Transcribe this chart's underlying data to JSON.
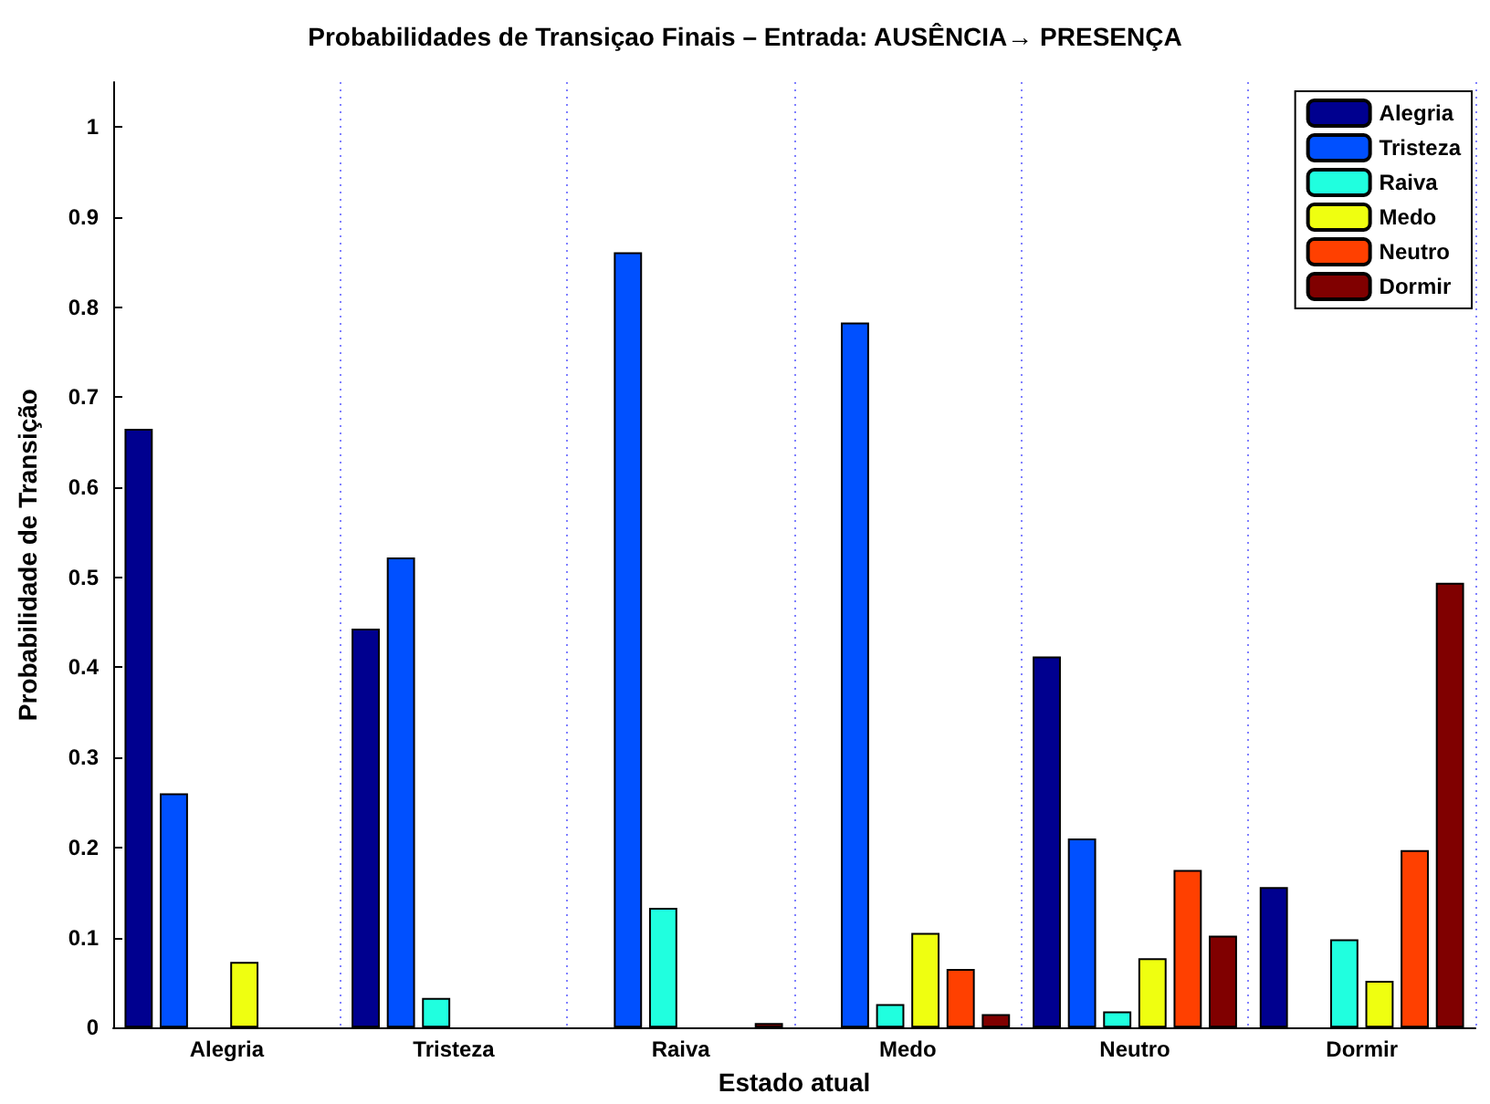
{
  "chart_data": {
    "type": "bar",
    "title": "Probabilidades de Transiçao Finais – Entrada: AUSÊNCIA→ PRESENÇA",
    "xlabel": "Estado atual",
    "ylabel": "Probabilidade de Transição",
    "categories": [
      "Alegria",
      "Tristeza",
      "Raiva",
      "Medo",
      "Neutro",
      "Dormir"
    ],
    "series": [
      {
        "name": "Alegria",
        "color": "#00008f",
        "values": [
          0.665,
          0.443,
          0,
          0,
          0.412,
          0.156
        ]
      },
      {
        "name": "Tristeza",
        "color": "#0050ff",
        "values": [
          0.26,
          0.522,
          0.861,
          0.783,
          0.21,
          0
        ]
      },
      {
        "name": "Raiva",
        "color": "#20ffdf",
        "values": [
          0,
          0.033,
          0.133,
          0.026,
          0.018,
          0.098
        ]
      },
      {
        "name": "Medo",
        "color": "#efff10",
        "values": [
          0.073,
          0,
          0,
          0.105,
          0.077,
          0.052
        ]
      },
      {
        "name": "Neutro",
        "color": "#ff4000",
        "values": [
          0,
          0,
          0,
          0.065,
          0.175,
          0.197
        ]
      },
      {
        "name": "Dormir",
        "color": "#800000",
        "values": [
          0,
          0,
          0.005,
          0.015,
          0.102,
          0.494
        ]
      }
    ],
    "ylim": [
      0,
      1.05
    ],
    "yticks": [
      0,
      0.1,
      0.2,
      0.3,
      0.4,
      0.5,
      0.6,
      0.7,
      0.8,
      0.9,
      1
    ],
    "grid": "x",
    "legend": "top right"
  }
}
